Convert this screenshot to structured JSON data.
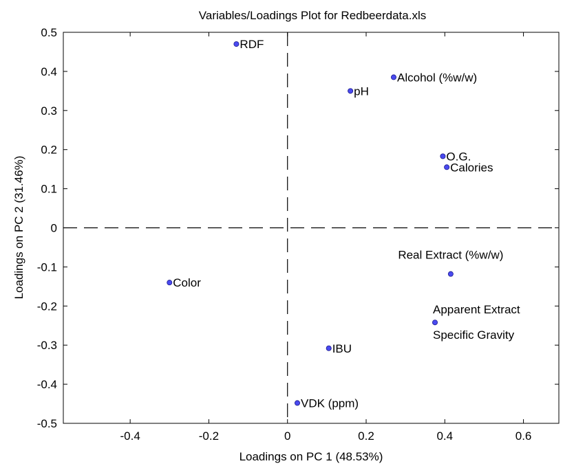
{
  "chart_data": {
    "type": "scatter",
    "title": "Variables/Loadings Plot for Redbeerdata.xls",
    "xlabel": "Loadings on PC 1 (48.53%)",
    "ylabel": "Loadings on PC 2 (31.46%)",
    "xlim": [
      -0.57,
      0.69
    ],
    "ylim": [
      -0.5,
      0.5
    ],
    "xticks": [
      -0.4,
      -0.2,
      0,
      0.2,
      0.4,
      0.6
    ],
    "xtick_labels": [
      "-0.4",
      "-0.2",
      "0",
      "0.2",
      "0.4",
      "0.6"
    ],
    "yticks": [
      -0.5,
      -0.4,
      -0.3,
      -0.2,
      -0.1,
      0,
      0.1,
      0.2,
      0.3,
      0.4,
      0.5
    ],
    "ytick_labels": [
      "-0.5",
      "-0.4",
      "-0.3",
      "-0.2",
      "-0.1",
      "0",
      "0.1",
      "0.2",
      "0.3",
      "0.4",
      "0.5"
    ],
    "grid": false,
    "reference_lines": [
      "x = 0 (dashed)",
      "y = 0 (dashed)"
    ],
    "marker_color": "#4a4af0",
    "points": [
      {
        "label": "RDF",
        "x": -0.13,
        "y": 0.47,
        "label_pos": "right"
      },
      {
        "label": "Alcohol  (%w/w)",
        "x": 0.27,
        "y": 0.385,
        "label_pos": "right"
      },
      {
        "label": "pH",
        "x": 0.16,
        "y": 0.35,
        "label_pos": "right"
      },
      {
        "label": "O.G.",
        "x": 0.395,
        "y": 0.183,
        "label_pos": "right"
      },
      {
        "label": "Calories",
        "x": 0.405,
        "y": 0.155,
        "label_pos": "right"
      },
      {
        "label": "Color",
        "x": -0.3,
        "y": -0.14,
        "label_pos": "right"
      },
      {
        "label": "Real Extract (%w/w)",
        "x": 0.415,
        "y": -0.118,
        "label_pos": "above"
      },
      {
        "label": "Apparent Extract",
        "x": 0.375,
        "y": -0.242,
        "label_pos": "above-right"
      },
      {
        "label": "Specific Gravity",
        "x": 0.375,
        "y": -0.242,
        "label_pos": "below-right"
      },
      {
        "label": "IBU",
        "x": 0.105,
        "y": -0.308,
        "label_pos": "right"
      },
      {
        "label": "VDK (ppm)",
        "x": 0.025,
        "y": -0.448,
        "label_pos": "right"
      }
    ]
  }
}
